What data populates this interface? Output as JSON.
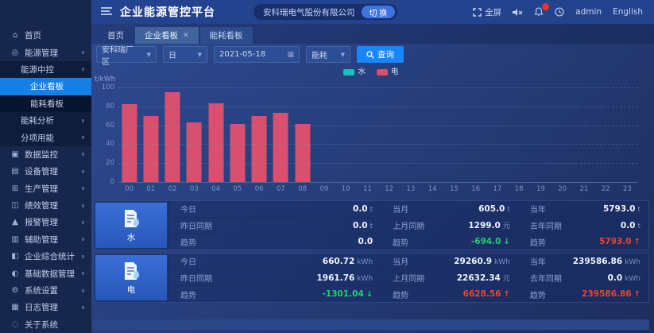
{
  "header": {
    "title": "企业能源管控平台",
    "company": "安科瑞电气股份有限公司",
    "switch_label": "切 换",
    "fullscreen_label": "全屏",
    "username": "admin",
    "language": "English",
    "notification_count": ""
  },
  "tabs": [
    {
      "label": "首页",
      "style": "plain",
      "closable": false
    },
    {
      "label": "企业看板",
      "style": "active",
      "closable": true
    },
    {
      "label": "能耗看板",
      "style": "other",
      "closable": false
    }
  ],
  "filters": {
    "area": "安科瑞厂区",
    "period": "日",
    "date": "2021-05-18",
    "type": "能耗",
    "query_label": "查询"
  },
  "sidebar": {
    "items": [
      {
        "label": "首页",
        "level": 1,
        "icon": "home-icon",
        "glyph": "⌂",
        "arrow": ""
      },
      {
        "label": "能源管理",
        "level": 1,
        "icon": "energy-icon",
        "glyph": "◎",
        "arrow": "up"
      },
      {
        "label": "能源中控",
        "level": 2,
        "icon": "",
        "glyph": "",
        "arrow": "up"
      },
      {
        "label": "企业看板",
        "level": 3,
        "icon": "",
        "glyph": "",
        "arrow": "",
        "active": true
      },
      {
        "label": "能耗看板",
        "level": 3,
        "icon": "",
        "glyph": "",
        "arrow": ""
      },
      {
        "label": "能耗分析",
        "level": 2,
        "icon": "",
        "glyph": "",
        "arrow": "down"
      },
      {
        "label": "分项用能",
        "level": 2,
        "icon": "",
        "glyph": "",
        "arrow": "down"
      },
      {
        "label": "数据监控",
        "level": 1,
        "icon": "data-monitor-icon",
        "glyph": "▣",
        "arrow": "down"
      },
      {
        "label": "设备管理",
        "level": 1,
        "icon": "device-icon",
        "glyph": "▤",
        "arrow": "down"
      },
      {
        "label": "生产管理",
        "level": 1,
        "icon": "production-icon",
        "glyph": "⊞",
        "arrow": "down"
      },
      {
        "label": "绩效管理",
        "level": 1,
        "icon": "performance-icon",
        "glyph": "◫",
        "arrow": "down"
      },
      {
        "label": "报警管理",
        "level": 1,
        "icon": "alarm-icon",
        "glyph": "▲",
        "arrow": "down"
      },
      {
        "label": "辅助管理",
        "level": 1,
        "icon": "assist-icon",
        "glyph": "▥",
        "arrow": "down"
      },
      {
        "label": "企业综合统计",
        "level": 1,
        "icon": "stats-icon",
        "glyph": "◧",
        "arrow": "down"
      },
      {
        "label": "基础数据管理",
        "level": 1,
        "icon": "base-data-icon",
        "glyph": "◐",
        "arrow": "down"
      },
      {
        "label": "系统设置",
        "level": 1,
        "icon": "settings-gear-icon",
        "glyph": "⚙",
        "arrow": "down"
      },
      {
        "label": "日志管理",
        "level": 1,
        "icon": "log-icon",
        "glyph": "▦",
        "arrow": "down"
      },
      {
        "label": "关于系统",
        "level": 1,
        "icon": "about-icon",
        "glyph": "◌",
        "arrow": ""
      }
    ]
  },
  "chart_data": {
    "type": "bar",
    "title": "",
    "unit_label": "t/kWh",
    "categories": [
      "00",
      "01",
      "02",
      "03",
      "04",
      "05",
      "06",
      "07",
      "08",
      "09",
      "10",
      "11",
      "12",
      "13",
      "14",
      "15",
      "16",
      "17",
      "18",
      "19",
      "20",
      "21",
      "22",
      "23"
    ],
    "series": [
      {
        "name": "水",
        "color": "#1bc1c1",
        "values": [
          0,
          0,
          0,
          0,
          0,
          0,
          0,
          0,
          0,
          0,
          0,
          0,
          0,
          0,
          0,
          0,
          0,
          0,
          0,
          0,
          0,
          0,
          0,
          0
        ]
      },
      {
        "name": "电",
        "color": "#d9506e",
        "values": [
          82,
          70,
          95,
          63,
          83,
          61,
          70,
          73,
          61,
          0,
          0,
          0,
          0,
          0,
          0,
          0,
          0,
          0,
          0,
          0,
          0,
          0,
          0,
          0
        ]
      }
    ],
    "ylim": [
      0,
      100
    ],
    "yticks": [
      0,
      20,
      40,
      60,
      80,
      100
    ],
    "grid": true,
    "legend_position": "top-center"
  },
  "panels": [
    {
      "name": "水",
      "icon": "water-doc-icon",
      "columns": [
        {
          "rows": [
            {
              "label": "今日",
              "value": "0.0",
              "unit": "t",
              "trend": ""
            },
            {
              "label": "昨日同期",
              "value": "0.0",
              "unit": "t",
              "trend": ""
            },
            {
              "label": "趋势",
              "value": "0.0",
              "unit": "",
              "trend": "flat"
            }
          ]
        },
        {
          "rows": [
            {
              "label": "当月",
              "value": "605.0",
              "unit": "t",
              "trend": ""
            },
            {
              "label": "上月同期",
              "value": "1299.0",
              "unit": "元",
              "trend": ""
            },
            {
              "label": "趋势",
              "value": "-694.0",
              "unit": "",
              "trend": "down"
            }
          ]
        },
        {
          "rows": [
            {
              "label": "当年",
              "value": "5793.0",
              "unit": "t",
              "trend": ""
            },
            {
              "label": "去年同期",
              "value": "0.0",
              "unit": "t",
              "trend": ""
            },
            {
              "label": "趋势",
              "value": "5793.0",
              "unit": "",
              "trend": "up"
            }
          ]
        }
      ]
    },
    {
      "name": "电",
      "icon": "electricity-doc-icon",
      "columns": [
        {
          "rows": [
            {
              "label": "今日",
              "value": "660.72",
              "unit": "kWh",
              "trend": ""
            },
            {
              "label": "昨日同期",
              "value": "1961.76",
              "unit": "kWh",
              "trend": ""
            },
            {
              "label": "趋势",
              "value": "-1301.04",
              "unit": "",
              "trend": "down"
            }
          ]
        },
        {
          "rows": [
            {
              "label": "当月",
              "value": "29260.9",
              "unit": "kWh",
              "trend": ""
            },
            {
              "label": "上月同期",
              "value": "22632.34",
              "unit": "元",
              "trend": ""
            },
            {
              "label": "趋势",
              "value": "6628.56",
              "unit": "",
              "trend": "up"
            }
          ]
        },
        {
          "rows": [
            {
              "label": "当年",
              "value": "239586.86",
              "unit": "kWh",
              "trend": ""
            },
            {
              "label": "去年同期",
              "value": "0.0",
              "unit": "kWh",
              "trend": ""
            },
            {
              "label": "趋势",
              "value": "239586.86",
              "unit": "",
              "trend": "up"
            }
          ]
        }
      ]
    }
  ]
}
